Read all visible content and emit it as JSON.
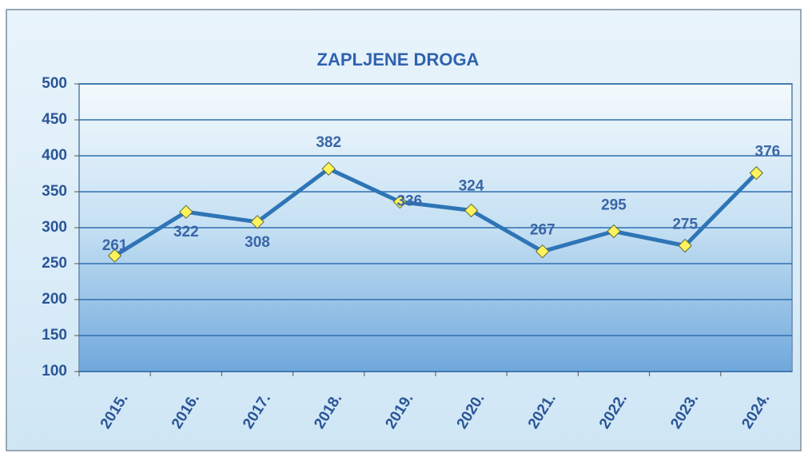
{
  "chart_data": {
    "type": "line",
    "title": "ZAPLJENE DROGA",
    "categories": [
      "2015.",
      "2016.",
      "2017.",
      "2018.",
      "2019.",
      "2020.",
      "2021.",
      "2022.",
      "2023.",
      "2024."
    ],
    "series": [
      {
        "name": "Zapljene droga",
        "color": "#2e75b6",
        "values": [
          261,
          322,
          308,
          382,
          336,
          324,
          267,
          295,
          275,
          376
        ]
      }
    ],
    "ylim": [
      100,
      500
    ],
    "yticks": [
      100,
      150,
      200,
      250,
      300,
      350,
      400,
      450,
      500
    ],
    "grid": true,
    "marker_color": "#fff35c"
  }
}
